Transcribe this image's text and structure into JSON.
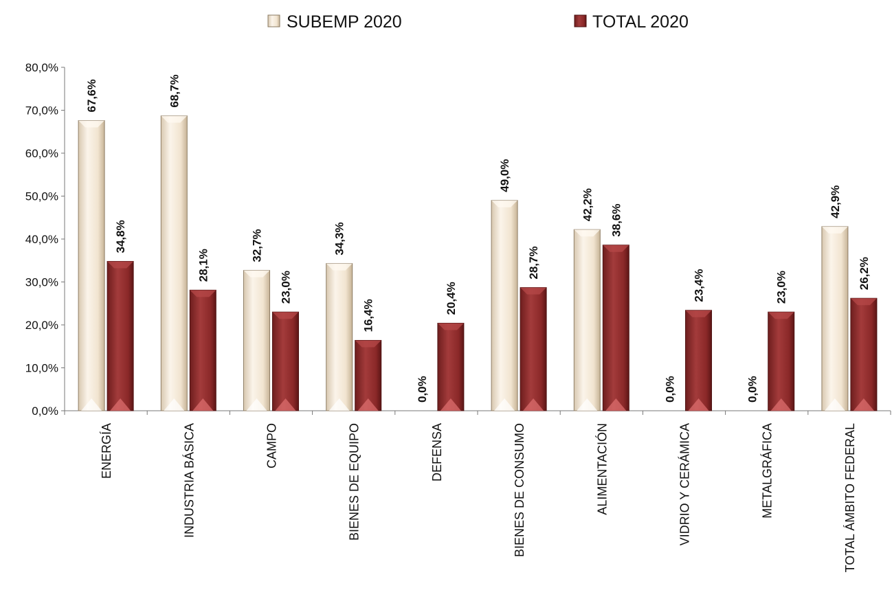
{
  "chart_data": {
    "type": "bar",
    "categories": [
      "ENERGÍA",
      "INDUSTRIA BÁSICA",
      "CAMPO",
      "BIENES DE EQUIPO",
      "DEFENSA",
      "BIENES DE CONSUMO",
      "ALIMENTACIÓN",
      "VIDRIO Y CERÁMICA",
      "METALGRÁFICA",
      "TOTAL ÁMBITO FEDERAL"
    ],
    "series": [
      {
        "name": "SUBEMP 2020",
        "color": "#f3e6d2",
        "values": [
          67.6,
          68.7,
          32.7,
          34.3,
          0.0,
          49.0,
          42.2,
          0.0,
          0.0,
          42.9
        ],
        "labels": [
          "67,6%",
          "68,7%",
          "32,7%",
          "34,3%",
          "0,0%",
          "49,0%",
          "42,2%",
          "0,0%",
          "0,0%",
          "42,9%"
        ]
      },
      {
        "name": "TOTAL 2020",
        "color": "#8b2b2b",
        "values": [
          34.8,
          28.1,
          23.0,
          16.4,
          20.4,
          28.7,
          38.6,
          23.4,
          23.0,
          26.2
        ],
        "labels": [
          "34,8%",
          "28,1%",
          "23,0%",
          "16,4%",
          "20,4%",
          "28,7%",
          "38,6%",
          "23,4%",
          "23,0%",
          "26,2%"
        ]
      }
    ],
    "y_ticks": [
      0,
      10,
      20,
      30,
      40,
      50,
      60,
      70,
      80
    ],
    "y_tick_labels": [
      "0,0%",
      "10,0%",
      "20,0%",
      "30,0%",
      "40,0%",
      "50,0%",
      "60,0%",
      "70,0%",
      "80,0%"
    ],
    "ylim": [
      0,
      80
    ],
    "grid": false,
    "legend_position": "top-center",
    "title": "",
    "xlabel": "",
    "ylabel": ""
  }
}
